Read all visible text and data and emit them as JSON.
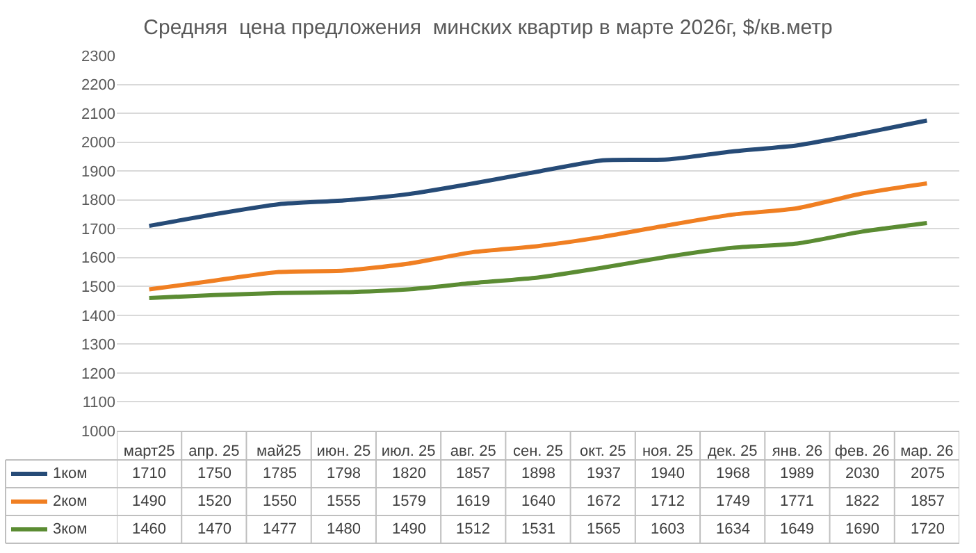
{
  "chart_data": {
    "type": "line",
    "title": "Средняя  цена предложения  минских квартир в марте 2026г, $/кв.метр",
    "categories": [
      "март25",
      "апр. 25",
      "май25",
      "июн. 25",
      "июл. 25",
      "авг. 25",
      "сен. 25",
      "окт. 25",
      "ноя. 25",
      "дек. 25",
      "янв. 26",
      "фев. 26",
      "мар. 26"
    ],
    "series": [
      {
        "name": "1ком",
        "color": "#264b77",
        "values": [
          1710,
          1750,
          1785,
          1798,
          1820,
          1857,
          1898,
          1937,
          1940,
          1968,
          1989,
          2030,
          2075
        ]
      },
      {
        "name": "2ком",
        "color": "#f07f22",
        "values": [
          1490,
          1520,
          1550,
          1555,
          1579,
          1619,
          1640,
          1672,
          1712,
          1749,
          1771,
          1822,
          1857
        ]
      },
      {
        "name": "3ком",
        "color": "#5b8c33",
        "values": [
          1460,
          1470,
          1477,
          1480,
          1490,
          1512,
          1531,
          1565,
          1603,
          1634,
          1649,
          1690,
          1720
        ]
      }
    ],
    "ylim": [
      1000,
      2300
    ],
    "yticks": [
      1000,
      1100,
      1200,
      1300,
      1400,
      1500,
      1600,
      1700,
      1800,
      1900,
      2000,
      2100,
      2200,
      2300
    ],
    "grid": "y",
    "legend": "bottom",
    "data_labels": true,
    "marker": "none",
    "line_style": "solid"
  }
}
